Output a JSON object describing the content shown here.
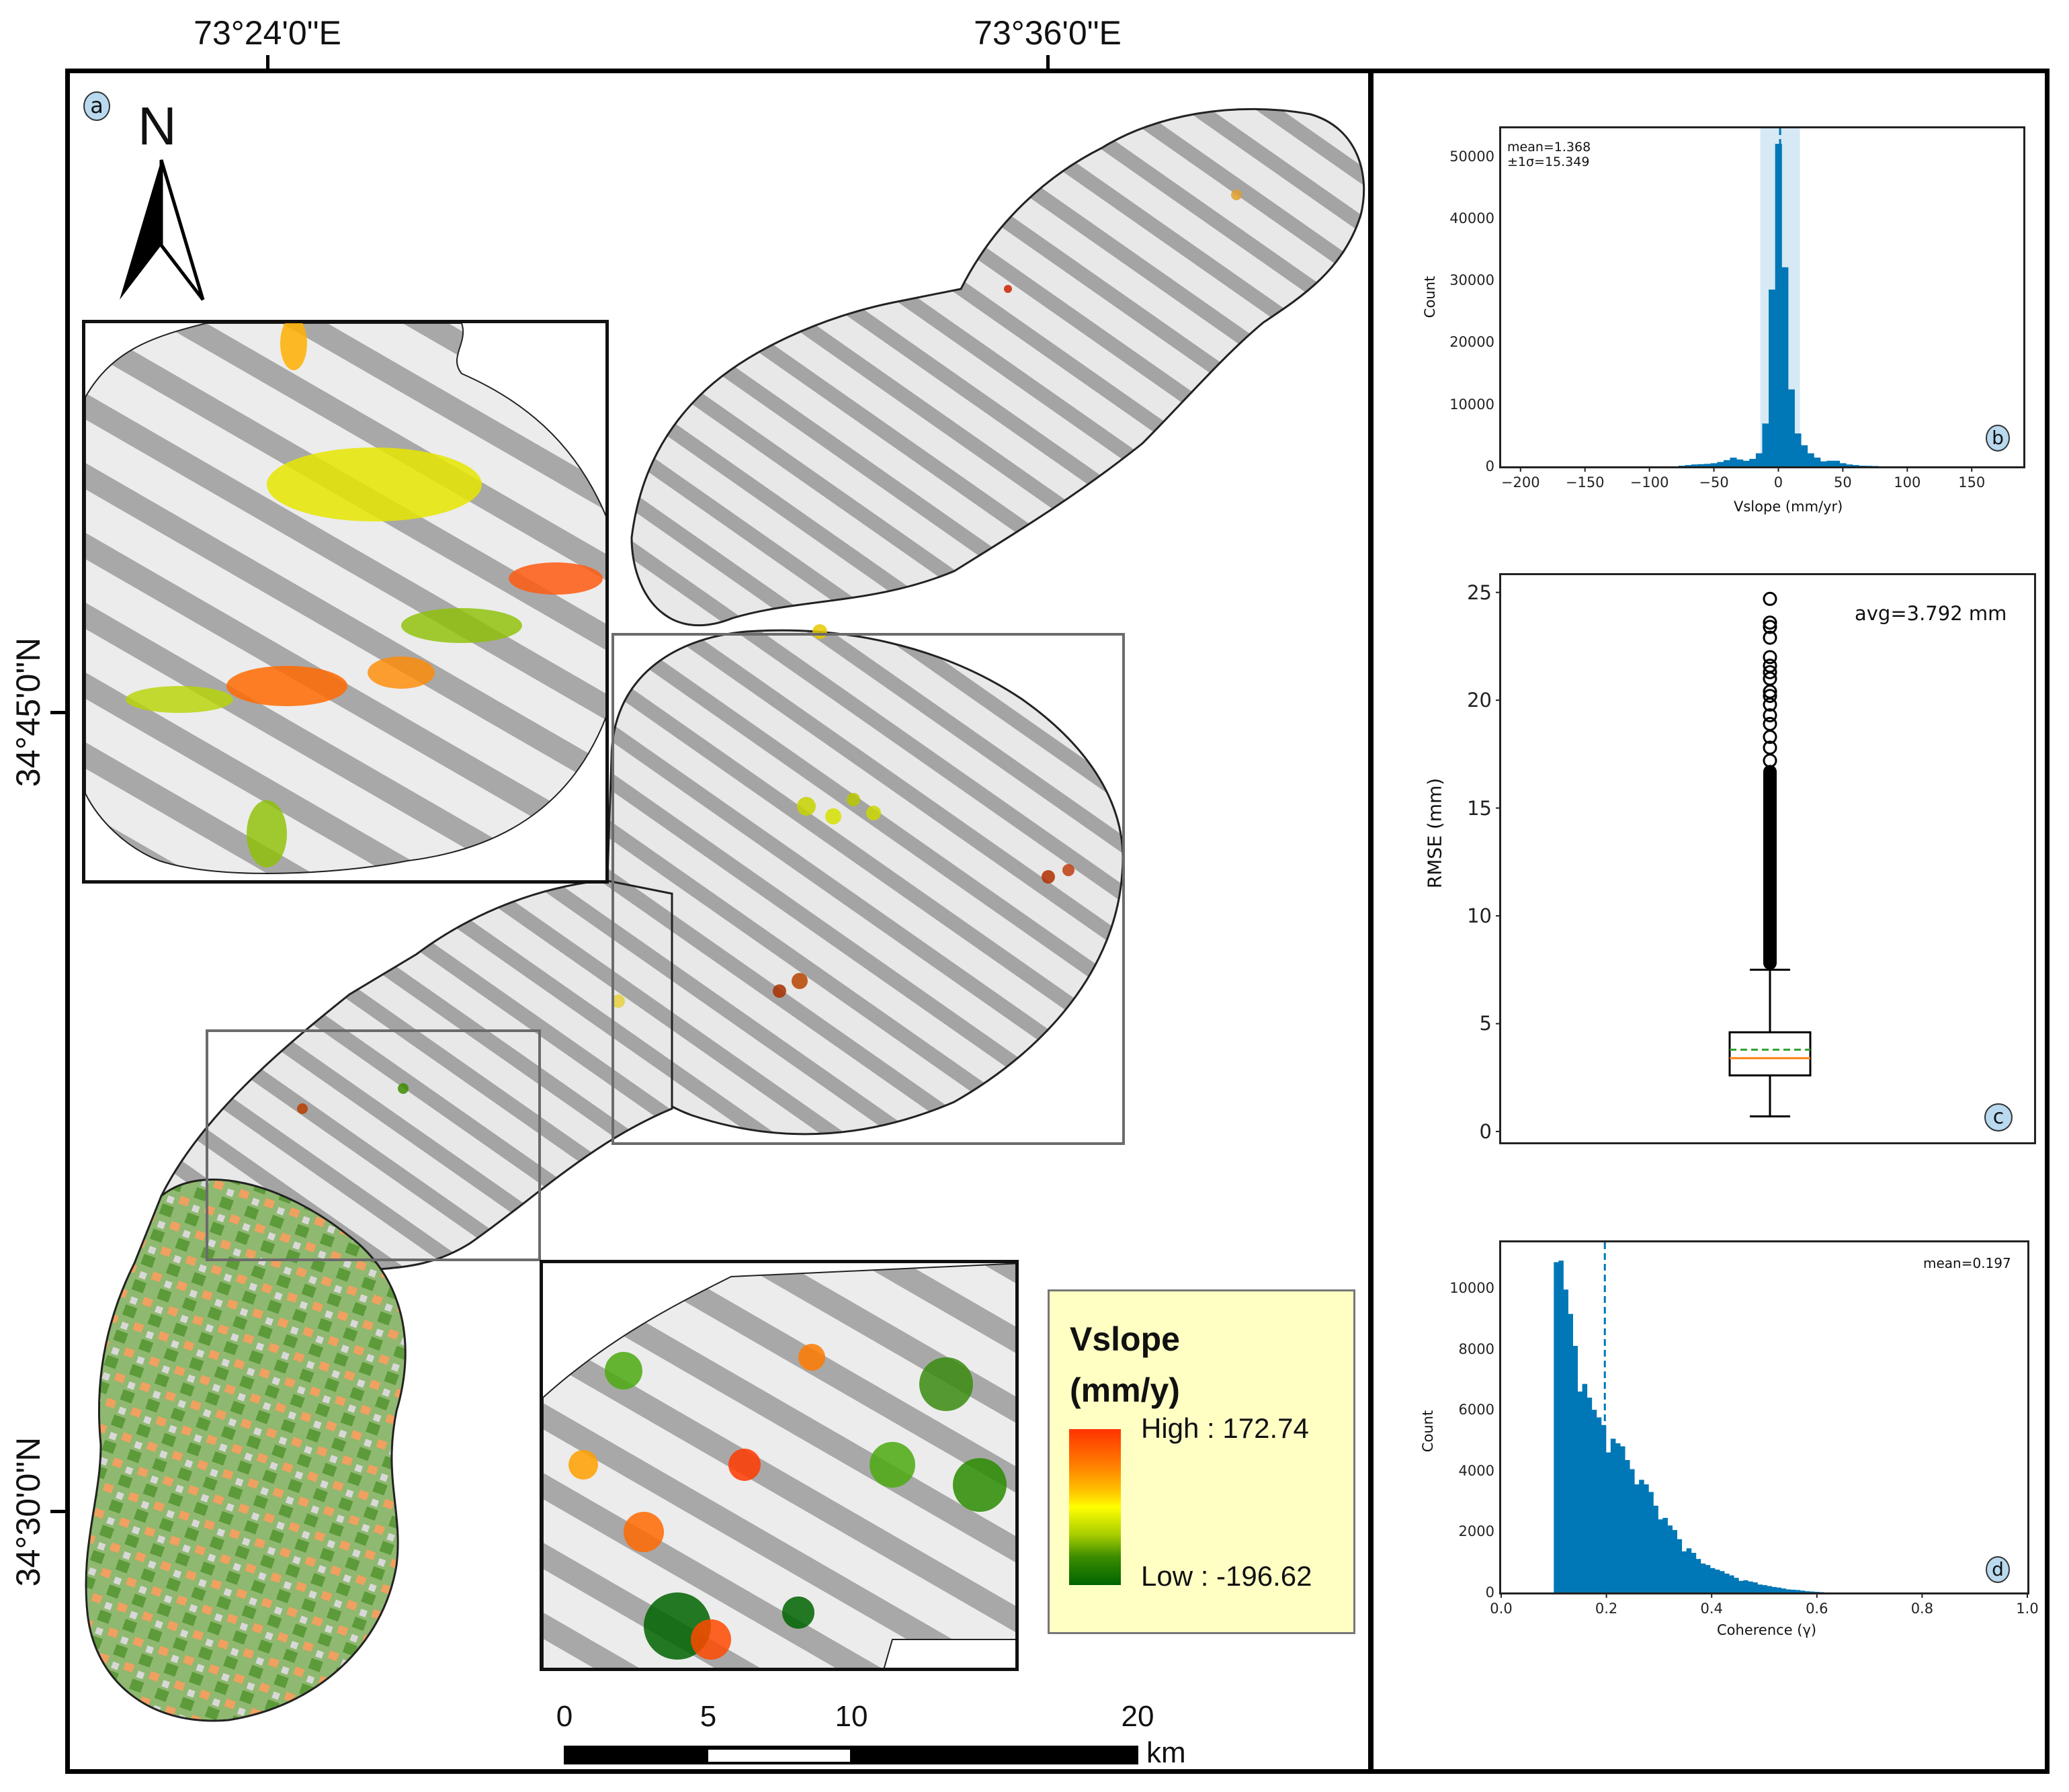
{
  "map_panel": {
    "badge": "a",
    "north_label": "N",
    "lon_labels": [
      "73°24'0\"E",
      "73°36'0\"E"
    ],
    "lat_labels": [
      "34°45'0\"N",
      "34°30'0\"N"
    ],
    "legend": {
      "title_line1": "Vslope",
      "title_line2": "(mm/y)",
      "high": "High : 172.74",
      "low": "Low : -196.62",
      "colors": [
        "#ff3300",
        "#ff7a00",
        "#ffc400",
        "#ffff00",
        "#a6cc00",
        "#3c8c00",
        "#006400"
      ]
    },
    "scale_bar": {
      "ticks": [
        "0",
        "5",
        "10",
        "20"
      ],
      "unit": "km"
    }
  },
  "chart_data": [
    {
      "panel": "b",
      "type": "bar",
      "title": "",
      "xlabel": "Vslope (mm/yr)",
      "ylabel": "Count",
      "xlim": [
        -215,
        190
      ],
      "ylim": [
        0,
        54500
      ],
      "xticks": [
        "−200",
        "−150",
        "−100",
        "−50",
        "0",
        "50",
        "100",
        "150"
      ],
      "yticks": [
        "0",
        "10000",
        "20000",
        "30000",
        "40000",
        "50000"
      ],
      "annotation": [
        "mean=1.368",
        "±1σ=15.349"
      ],
      "mean": 1.368,
      "sigma": 15.349,
      "bin_centers": [
        -75,
        -70,
        -65,
        -60,
        -55,
        -50,
        -45,
        -40,
        -35,
        -30,
        -25,
        -20,
        -15,
        -10,
        -5,
        0,
        5,
        10,
        15,
        20,
        25,
        30,
        35,
        40,
        45,
        50,
        55,
        60,
        65,
        70,
        75
      ],
      "values": [
        100,
        200,
        300,
        350,
        400,
        500,
        700,
        1000,
        1400,
        1100,
        900,
        1200,
        2100,
        6900,
        28500,
        52000,
        32100,
        12400,
        5300,
        3400,
        2100,
        1400,
        800,
        900,
        900,
        500,
        300,
        200,
        100,
        80,
        50
      ],
      "bar_color": "#0077b6",
      "band_color": "#d6e9f5"
    },
    {
      "panel": "c",
      "type": "box",
      "title": "",
      "xlabel": "",
      "ylabel": "RMSE (mm)",
      "ylim": [
        -0.5,
        25.8
      ],
      "yticks": [
        "0",
        "5",
        "10",
        "15",
        "20",
        "25"
      ],
      "annotation": "avg=3.792 mm",
      "mean": 3.792,
      "median": 3.4,
      "q1": 2.6,
      "q3": 4.6,
      "whisker_low": 0.7,
      "whisker_high": 7.5,
      "outliers_range": [
        7.5,
        24.7
      ],
      "outliers_sparse": [
        17.2,
        17.8,
        18.3,
        18.9,
        19.3,
        19.8,
        20.2,
        20.4,
        21.0,
        21.3,
        21.6,
        22.0,
        22.9,
        23.4,
        23.6,
        24.7
      ],
      "median_color": "#ff7f0e",
      "mean_color": "#2ca02c"
    },
    {
      "panel": "d",
      "type": "bar",
      "title": "",
      "xlabel": "Coherence (γ)",
      "ylabel": "Count",
      "xlim": [
        0.0,
        1.0
      ],
      "ylim": [
        0,
        11500
      ],
      "xticks": [
        "0.0",
        "0.2",
        "0.4",
        "0.6",
        "0.8",
        "1.0"
      ],
      "yticks": [
        "0",
        "2000",
        "4000",
        "6000",
        "8000",
        "10000"
      ],
      "annotation": "mean=0.197",
      "mean": 0.197,
      "bin_start": 0.1,
      "bin_width": 0.009,
      "values": [
        10850,
        10900,
        9950,
        9150,
        8100,
        6600,
        6850,
        6400,
        6000,
        5750,
        5500,
        4600,
        5050,
        4900,
        4800,
        4350,
        4050,
        3550,
        3700,
        3550,
        3300,
        2850,
        2400,
        2450,
        2200,
        2050,
        1750,
        1350,
        1450,
        1300,
        1100,
        950,
        900,
        800,
        750,
        700,
        620,
        560,
        480,
        380,
        400,
        360,
        330,
        260,
        240,
        210,
        180,
        160,
        130,
        100,
        90,
        80,
        60,
        40,
        30,
        20,
        10
      ],
      "bar_color": "#0077b6"
    }
  ],
  "panel_badges": [
    "b",
    "c",
    "d"
  ]
}
